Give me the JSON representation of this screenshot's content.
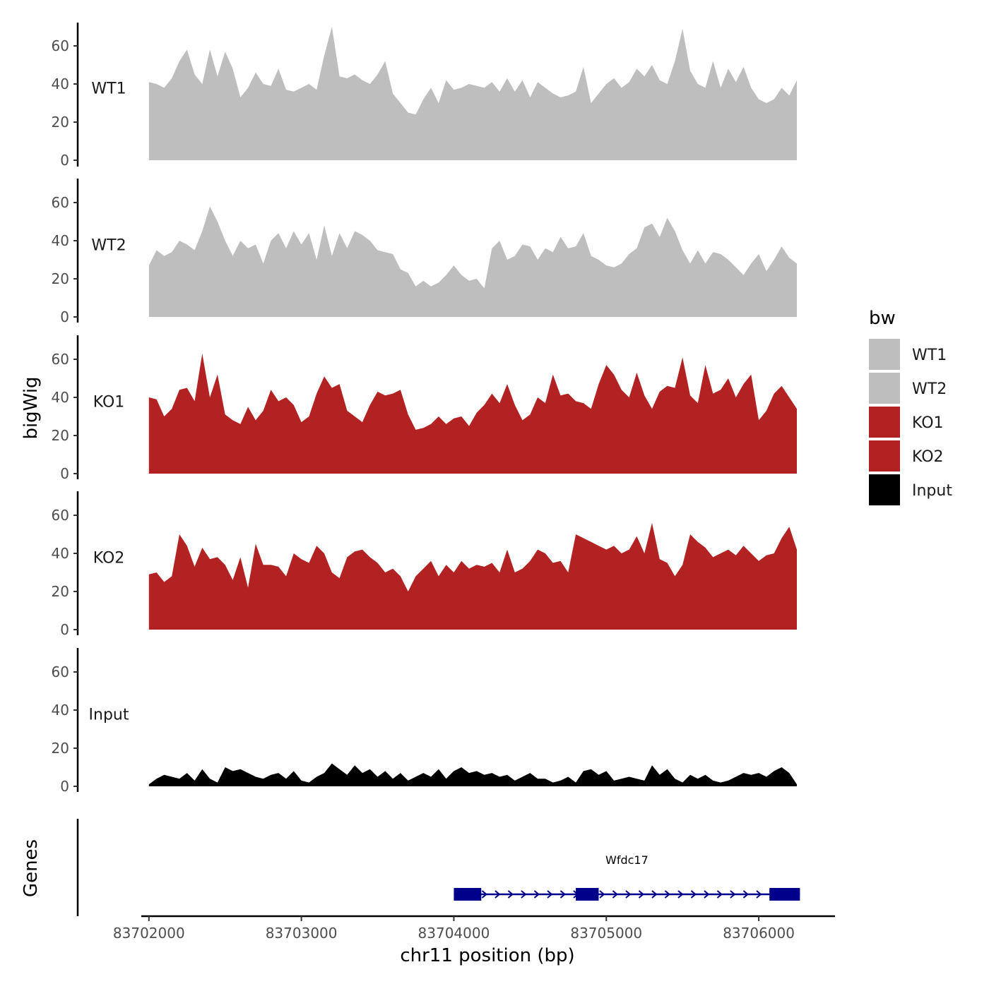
{
  "chart_data": {
    "type": "area",
    "title": "",
    "xlabel": "chr11 position (bp)",
    "ylabel": "bigWig",
    "gene_panel_label": "Genes",
    "xlim": [
      83701950,
      83706500
    ],
    "ylim": [
      0,
      72
    ],
    "yticks": [
      0,
      20,
      40,
      60
    ],
    "xticks": [
      83702000,
      83703000,
      83704000,
      83705000,
      83706000
    ],
    "xtick_labels": [
      "83702000",
      "83703000",
      "83704000",
      "83705000",
      "83706000"
    ],
    "legend": {
      "title": "bw",
      "position": "right",
      "entries": [
        {
          "label": "WT1",
          "color": "#bebebe"
        },
        {
          "label": "WT2",
          "color": "#bebebe"
        },
        {
          "label": "KO1",
          "color": "#b22222"
        },
        {
          "label": "KO2",
          "color": "#b22222"
        },
        {
          "label": "Input",
          "color": "#000000"
        }
      ]
    },
    "series": [
      {
        "name": "WT1",
        "color": "#bebebe",
        "x": [
          83702000,
          83702050,
          83702100,
          83702150,
          83702200,
          83702250,
          83702300,
          83702350,
          83702400,
          83702450,
          83702500,
          83702550,
          83702600,
          83702650,
          83702700,
          83702750,
          83702800,
          83702850,
          83702900,
          83702950,
          83703000,
          83703050,
          83703100,
          83703150,
          83703200,
          83703250,
          83703300,
          83703350,
          83703400,
          83703450,
          83703500,
          83703550,
          83703600,
          83703650,
          83703700,
          83703750,
          83703800,
          83703850,
          83703900,
          83703950,
          83704000,
          83704050,
          83704100,
          83704150,
          83704200,
          83704250,
          83704300,
          83704350,
          83704400,
          83704450,
          83704500,
          83704550,
          83704600,
          83704650,
          83704700,
          83704750,
          83704800,
          83704850,
          83704900,
          83704950,
          83705000,
          83705050,
          83705100,
          83705150,
          83705200,
          83705250,
          83705300,
          83705350,
          83705400,
          83705450,
          83705500,
          83705550,
          83705600,
          83705650,
          83705700,
          83705750,
          83705800,
          83705850,
          83705900,
          83705950,
          83706000,
          83706050,
          83706100,
          83706150,
          83706200,
          83706250
        ],
        "values": [
          41,
          40,
          38,
          43,
          52,
          58,
          45,
          40,
          58,
          44,
          57,
          48,
          33,
          38,
          46,
          40,
          39,
          48,
          37,
          36,
          38,
          40,
          37,
          55,
          70,
          44,
          43,
          45,
          42,
          40,
          45,
          52,
          35,
          30,
          25,
          24,
          32,
          38,
          30,
          42,
          37,
          38,
          40,
          39,
          38,
          41,
          36,
          43,
          36,
          42,
          33,
          41,
          38,
          35,
          33,
          34,
          36,
          49,
          30,
          35,
          40,
          43,
          38,
          41,
          48,
          44,
          50,
          42,
          40,
          52,
          69,
          47,
          40,
          38,
          52,
          38,
          48,
          41,
          49,
          38,
          32,
          30,
          32,
          38,
          34,
          42
        ]
      },
      {
        "name": "WT2",
        "color": "#bebebe",
        "x": [
          83702000,
          83702050,
          83702100,
          83702150,
          83702200,
          83702250,
          83702300,
          83702350,
          83702400,
          83702450,
          83702500,
          83702550,
          83702600,
          83702650,
          83702700,
          83702750,
          83702800,
          83702850,
          83702900,
          83702950,
          83703000,
          83703050,
          83703100,
          83703150,
          83703200,
          83703250,
          83703300,
          83703350,
          83703400,
          83703450,
          83703500,
          83703550,
          83703600,
          83703650,
          83703700,
          83703750,
          83703800,
          83703850,
          83703900,
          83703950,
          83704000,
          83704050,
          83704100,
          83704150,
          83704200,
          83704250,
          83704300,
          83704350,
          83704400,
          83704450,
          83704500,
          83704550,
          83704600,
          83704650,
          83704700,
          83704750,
          83704800,
          83704850,
          83704900,
          83704950,
          83705000,
          83705050,
          83705100,
          83705150,
          83705200,
          83705250,
          83705300,
          83705350,
          83705400,
          83705450,
          83705500,
          83705550,
          83705600,
          83705650,
          83705700,
          83705750,
          83705800,
          83705850,
          83705900,
          83705950,
          83706000,
          83706050,
          83706100,
          83706150,
          83706200,
          83706250
        ],
        "values": [
          27,
          35,
          32,
          34,
          40,
          38,
          35,
          45,
          58,
          50,
          40,
          32,
          40,
          36,
          38,
          28,
          40,
          44,
          36,
          45,
          38,
          44,
          30,
          48,
          32,
          44,
          36,
          45,
          43,
          40,
          35,
          34,
          33,
          25,
          23,
          16,
          19,
          16,
          18,
          22,
          27,
          22,
          19,
          20,
          15,
          36,
          40,
          30,
          32,
          38,
          37,
          30,
          36,
          34,
          42,
          36,
          37,
          44,
          32,
          30,
          27,
          26,
          28,
          33,
          36,
          47,
          49,
          42,
          52,
          45,
          35,
          28,
          35,
          28,
          34,
          33,
          30,
          26,
          22,
          28,
          33,
          24,
          30,
          37,
          31,
          28
        ]
      },
      {
        "name": "KO1",
        "color": "#b22222",
        "x": [
          83702000,
          83702050,
          83702100,
          83702150,
          83702200,
          83702250,
          83702300,
          83702350,
          83702400,
          83702450,
          83702500,
          83702550,
          83702600,
          83702650,
          83702700,
          83702750,
          83702800,
          83702850,
          83702900,
          83702950,
          83703000,
          83703050,
          83703100,
          83703150,
          83703200,
          83703250,
          83703300,
          83703350,
          83703400,
          83703450,
          83703500,
          83703550,
          83703600,
          83703650,
          83703700,
          83703750,
          83703800,
          83703850,
          83703900,
          83703950,
          83704000,
          83704050,
          83704100,
          83704150,
          83704200,
          83704250,
          83704300,
          83704350,
          83704400,
          83704450,
          83704500,
          83704550,
          83704600,
          83704650,
          83704700,
          83704750,
          83704800,
          83704850,
          83704900,
          83704950,
          83705000,
          83705050,
          83705100,
          83705150,
          83705200,
          83705250,
          83705300,
          83705350,
          83705400,
          83705450,
          83705500,
          83705550,
          83705600,
          83705650,
          83705700,
          83705750,
          83705800,
          83705850,
          83705900,
          83705950,
          83706000,
          83706050,
          83706100,
          83706150,
          83706200,
          83706250
        ],
        "values": [
          40,
          39,
          30,
          34,
          44,
          45,
          38,
          63,
          40,
          52,
          31,
          28,
          26,
          35,
          28,
          33,
          44,
          38,
          40,
          36,
          27,
          30,
          42,
          51,
          45,
          47,
          33,
          30,
          27,
          36,
          43,
          41,
          42,
          44,
          31,
          23,
          24,
          26,
          30,
          26,
          29,
          30,
          25,
          32,
          36,
          42,
          37,
          47,
          36,
          28,
          31,
          40,
          37,
          52,
          41,
          42,
          38,
          37,
          34,
          47,
          57,
          52,
          44,
          40,
          53,
          41,
          34,
          43,
          46,
          45,
          61,
          41,
          37,
          57,
          42,
          44,
          50,
          40,
          47,
          52,
          28,
          33,
          42,
          46,
          40,
          34
        ]
      },
      {
        "name": "KO2",
        "color": "#b22222",
        "x": [
          83702000,
          83702050,
          83702100,
          83702150,
          83702200,
          83702250,
          83702300,
          83702350,
          83702400,
          83702450,
          83702500,
          83702550,
          83702600,
          83702650,
          83702700,
          83702750,
          83702800,
          83702850,
          83702900,
          83702950,
          83703000,
          83703050,
          83703100,
          83703150,
          83703200,
          83703250,
          83703300,
          83703350,
          83703400,
          83703450,
          83703500,
          83703550,
          83703600,
          83703650,
          83703700,
          83703750,
          83703800,
          83703850,
          83703900,
          83703950,
          83704000,
          83704050,
          83704100,
          83704150,
          83704200,
          83704250,
          83704300,
          83704350,
          83704400,
          83704450,
          83704500,
          83704550,
          83704600,
          83704650,
          83704700,
          83704750,
          83704800,
          83704850,
          83704900,
          83704950,
          83705000,
          83705050,
          83705100,
          83705150,
          83705200,
          83705250,
          83705300,
          83705350,
          83705400,
          83705450,
          83705500,
          83705550,
          83705600,
          83705650,
          83705700,
          83705750,
          83705800,
          83705850,
          83705900,
          83705950,
          83706000,
          83706050,
          83706100,
          83706150,
          83706200,
          83706250
        ],
        "values": [
          29,
          30,
          25,
          28,
          50,
          44,
          33,
          43,
          37,
          38,
          34,
          26,
          38,
          22,
          45,
          34,
          34,
          33,
          28,
          40,
          37,
          35,
          44,
          40,
          30,
          27,
          38,
          41,
          42,
          38,
          35,
          30,
          32,
          28,
          20,
          28,
          32,
          36,
          28,
          34,
          30,
          36,
          32,
          34,
          33,
          35,
          30,
          42,
          30,
          32,
          36,
          42,
          40,
          35,
          36,
          30,
          50,
          48,
          46,
          44,
          42,
          44,
          40,
          42,
          49,
          40,
          56,
          37,
          35,
          28,
          34,
          50,
          46,
          43,
          38,
          40,
          42,
          39,
          44,
          40,
          36,
          39,
          40,
          48,
          54,
          42
        ]
      },
      {
        "name": "Input",
        "color": "#000000",
        "x": [
          83702000,
          83702050,
          83702100,
          83702150,
          83702200,
          83702250,
          83702300,
          83702350,
          83702400,
          83702450,
          83702500,
          83702550,
          83702600,
          83702650,
          83702700,
          83702750,
          83702800,
          83702850,
          83702900,
          83702950,
          83703000,
          83703050,
          83703100,
          83703150,
          83703200,
          83703250,
          83703300,
          83703350,
          83703400,
          83703450,
          83703500,
          83703550,
          83703600,
          83703650,
          83703700,
          83703750,
          83703800,
          83703850,
          83703900,
          83703950,
          83704000,
          83704050,
          83704100,
          83704150,
          83704200,
          83704250,
          83704300,
          83704350,
          83704400,
          83704450,
          83704500,
          83704550,
          83704600,
          83704650,
          83704700,
          83704750,
          83704800,
          83704850,
          83704900,
          83704950,
          83705000,
          83705050,
          83705100,
          83705150,
          83705200,
          83705250,
          83705300,
          83705350,
          83705400,
          83705450,
          83705500,
          83705550,
          83705600,
          83705650,
          83705700,
          83705750,
          83705800,
          83705850,
          83705900,
          83705950,
          83706000,
          83706050,
          83706100,
          83706150,
          83706200,
          83706250
        ],
        "values": [
          1,
          4,
          6,
          5,
          4,
          7,
          3,
          9,
          4,
          2,
          10,
          8,
          9,
          7,
          5,
          4,
          6,
          7,
          4,
          8,
          3,
          2,
          5,
          7,
          12,
          9,
          6,
          11,
          7,
          9,
          5,
          8,
          4,
          7,
          3,
          5,
          7,
          5,
          9,
          4,
          8,
          10,
          7,
          8,
          6,
          7,
          5,
          6,
          3,
          5,
          7,
          4,
          4,
          2,
          3,
          5,
          2,
          8,
          9,
          6,
          8,
          3,
          4,
          5,
          4,
          3,
          11,
          6,
          9,
          4,
          2,
          6,
          4,
          6,
          3,
          2,
          3,
          5,
          7,
          6,
          7,
          5,
          8,
          10,
          7,
          1
        ]
      }
    ],
    "gene": {
      "name": "Wfdc17",
      "color": "#00008b",
      "strand": "+",
      "start": 83704000,
      "end": 83706270,
      "exons": [
        [
          83704000,
          83704180
        ],
        [
          83704800,
          83704950
        ],
        [
          83706070,
          83706270
        ]
      ]
    }
  }
}
